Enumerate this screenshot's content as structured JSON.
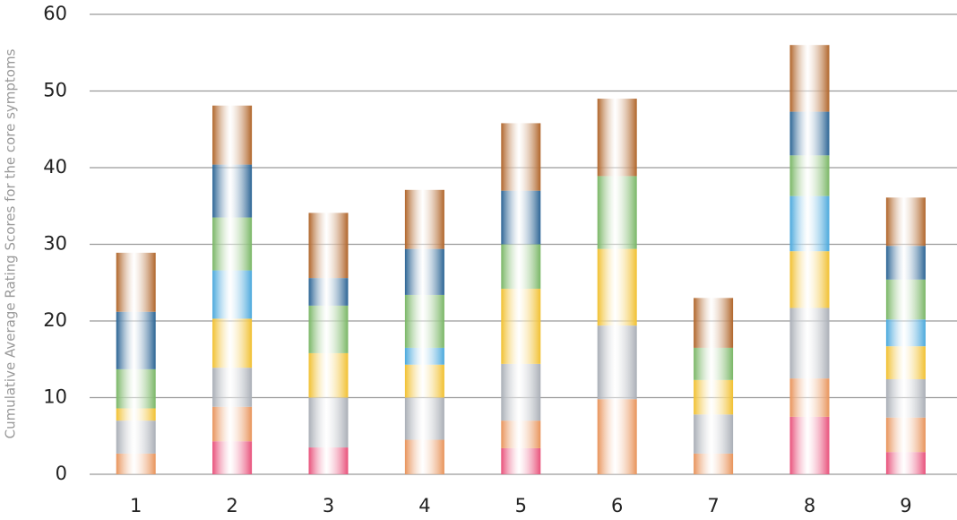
{
  "chart_data": {
    "type": "stacked_bar",
    "y_label": "Cumulative Average Rating Scores for the core symptoms",
    "categories": [
      "1",
      "2",
      "3",
      "4",
      "5",
      "6",
      "7",
      "8",
      "9"
    ],
    "series": [
      {
        "color": "#e8507a",
        "values": [
          0,
          4.3,
          3.5,
          0,
          3.4,
          0,
          0,
          7.5,
          2.9
        ]
      },
      {
        "color": "#e8935a",
        "values": [
          2.7,
          4.5,
          0,
          4.5,
          3.6,
          9.8,
          2.7,
          5.0,
          4.5
        ]
      },
      {
        "color": "#a9aeb6",
        "values": [
          4.3,
          5.1,
          6.5,
          5.5,
          7.4,
          9.6,
          5.1,
          9.2,
          5.0
        ]
      },
      {
        "color": "#f1c030",
        "values": [
          1.6,
          6.4,
          5.8,
          4.3,
          9.8,
          10.0,
          4.5,
          7.4,
          4.3
        ]
      },
      {
        "color": "#4aa8dc",
        "values": [
          0,
          6.3,
          0,
          2.2,
          0,
          0,
          0,
          7.2,
          3.5
        ]
      },
      {
        "color": "#79b665",
        "values": [
          5.1,
          6.9,
          6.2,
          6.9,
          5.8,
          9.5,
          4.2,
          5.3,
          5.2
        ]
      },
      {
        "color": "#2b6494",
        "values": [
          7.5,
          6.9,
          3.6,
          6.0,
          7.0,
          0,
          0,
          5.7,
          4.4
        ]
      },
      {
        "color": "#b0652a",
        "values": [
          7.7,
          7.7,
          8.5,
          7.7,
          8.8,
          10.1,
          6.5,
          8.7,
          6.3
        ]
      }
    ],
    "ylim": [
      0,
      60
    ],
    "yticks": [
      0,
      10,
      20,
      30,
      40,
      50,
      60
    ],
    "grid": true
  }
}
